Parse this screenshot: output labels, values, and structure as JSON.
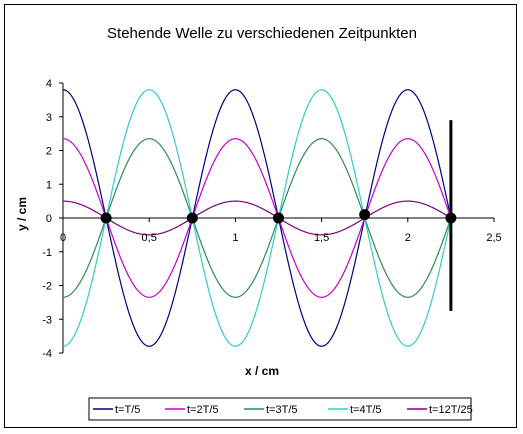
{
  "chart_data": {
    "type": "line",
    "title": "Stehende Welle zu verschiedenen Zeitpunkten",
    "xlabel": "x / cm",
    "ylabel": "y / cm",
    "xlim": [
      0,
      2.5
    ],
    "ylim": [
      -4,
      4
    ],
    "xticks": [
      "0",
      "0,5",
      "1",
      "1,5",
      "2",
      "2,5"
    ],
    "yticks": [
      "4",
      "3",
      "2",
      "1",
      "0",
      "-1",
      "-2",
      "-3",
      "-4"
    ],
    "x_range": [
      0,
      2.25
    ],
    "wavelength": 1.0,
    "grid": false,
    "legend_position": "bottom",
    "series": [
      {
        "name": "t=T/5",
        "color": "#000080",
        "amplitude": 3.8
      },
      {
        "name": "t=2T/5",
        "color": "#cc00cc",
        "amplitude": 2.35
      },
      {
        "name": "t=3T/5",
        "color": "#2e8b57",
        "amplitude": -2.35
      },
      {
        "name": "t=4T/5",
        "color": "#33cccc",
        "amplitude": -3.8
      },
      {
        "name": "t=12T/25",
        "color": "#800080",
        "amplitude": 0.5
      }
    ],
    "nodes": [
      {
        "x": 0.25,
        "y": 0
      },
      {
        "x": 0.75,
        "y": 0
      },
      {
        "x": 1.25,
        "y": 0
      },
      {
        "x": 1.75,
        "y": 0.1
      },
      {
        "x": 2.25,
        "y": 0
      }
    ],
    "marker_line": {
      "x": 2.25,
      "y_from": -2.75,
      "y_to": 2.9
    }
  }
}
